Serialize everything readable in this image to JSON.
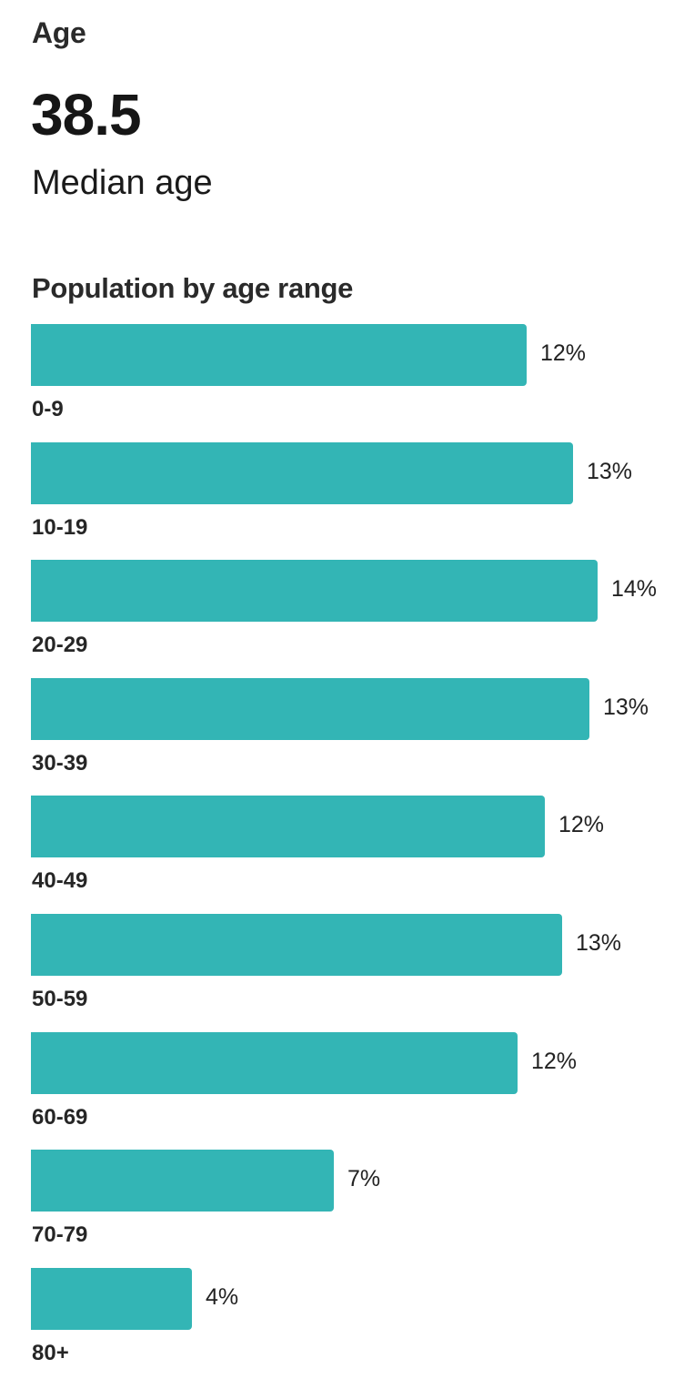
{
  "section": {
    "title": "Age"
  },
  "median": {
    "value": "38.5",
    "caption": "Median age"
  },
  "chart_title": "Population by age range",
  "colors": {
    "bar": "#33b5b5",
    "text": "#222222"
  },
  "chart_data": {
    "type": "bar",
    "orientation": "horizontal",
    "title": "Population by age range",
    "xlabel": "",
    "ylabel": "",
    "grid": false,
    "legend": null,
    "unit": "%",
    "categories": [
      "0-9",
      "10-19",
      "20-29",
      "30-39",
      "40-49",
      "50-59",
      "60-69",
      "70-79",
      "80+"
    ],
    "values": [
      12,
      13,
      14,
      13,
      12,
      13,
      12,
      7,
      4
    ],
    "value_labels": [
      "12%",
      "13%",
      "14%",
      "13%",
      "12%",
      "13%",
      "12%",
      "7%",
      "4%"
    ],
    "bar_pixel_widths": [
      545,
      596,
      623,
      614,
      565,
      584,
      535,
      333,
      177
    ]
  }
}
